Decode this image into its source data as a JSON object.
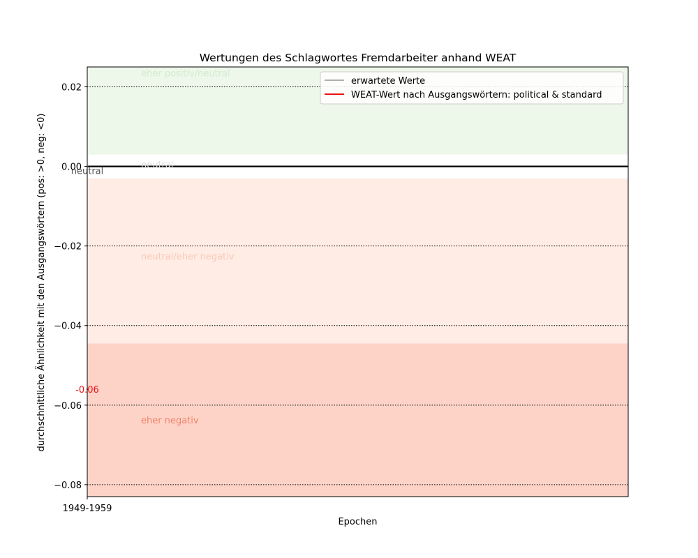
{
  "chart_data": {
    "type": "line",
    "title": "Wertungen des Schlagwortes Fremdarbeiter anhand WEAT",
    "xlabel": "Epochen",
    "ylabel": "durchschnittliche Ähnlichkeit mit den Ausgangswörtern (pos: >0, neg: <0)",
    "categories": [
      "1949-1959"
    ],
    "ylim": [
      -0.083,
      0.025
    ],
    "yticks": [
      {
        "value": 0.02,
        "label": "0.02"
      },
      {
        "value": 0.0,
        "label": "0.00"
      },
      {
        "value": -0.02,
        "label": "−0.02"
      },
      {
        "value": -0.04,
        "label": "−0.04"
      },
      {
        "value": -0.06,
        "label": "−0.06"
      },
      {
        "value": -0.08,
        "label": "−0.08"
      }
    ],
    "grid": true,
    "legend_position": "top-right",
    "zero_line": true,
    "bands": [
      {
        "from": 0.003,
        "to": 0.025,
        "label": "eher positiv/neutral",
        "label_value": 0.0235,
        "fill": "#edf7ea",
        "label_color": "#d4ecd0"
      },
      {
        "from": -0.003,
        "to": 0.003,
        "label": "neutral",
        "label_value": 0.0005,
        "fill": "#ffffff",
        "label_color": "#dddddd"
      },
      {
        "from": -0.0445,
        "to": -0.003,
        "label": "neutral/eher negativ",
        "label_value": -0.0225,
        "fill": "#ffece5",
        "label_color": "#f9c9b6"
      },
      {
        "from": -0.083,
        "to": -0.0445,
        "label": "eher negativ",
        "label_value": -0.0637,
        "fill": "#fdd3c8",
        "label_color": "#f0826a"
      }
    ],
    "series": [
      {
        "name": "erwartete Werte",
        "color": "#808080",
        "values": [
          0.0
        ],
        "point_label": "neutral",
        "label_color": "#555555"
      },
      {
        "name": "WEAT-Wert nach Ausgangswörtern: political & standard",
        "color": "#ee1111",
        "values": [
          -0.056
        ],
        "point_label": "-0.06",
        "label_color": "#ee1111"
      }
    ]
  }
}
